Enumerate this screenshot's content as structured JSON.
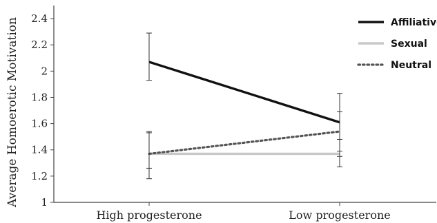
{
  "chart_data": {
    "type": "line",
    "ylabel": "Average Homoerotic Motivation",
    "xlabel": "",
    "categories": [
      "High progesterone",
      "Low progesterone"
    ],
    "ylim": [
      1,
      2.5
    ],
    "yticks": [
      "1",
      "1.2",
      "1.4",
      "1.6",
      "1.8",
      "2",
      "2.2",
      "2.4"
    ],
    "grid": false,
    "legend_position": "top-right",
    "series": [
      {
        "name": "Affiliative",
        "values": [
          2.07,
          1.61
        ],
        "error": [
          [
            1.93,
            2.29
          ],
          [
            1.39,
            1.83
          ]
        ],
        "color": "#111111",
        "style": "solid"
      },
      {
        "name": "Sexual",
        "values": [
          1.37,
          1.37
        ],
        "error": [
          [
            1.18,
            1.53
          ],
          [
            1.27,
            1.48
          ]
        ],
        "color": "#c8c8c8",
        "style": "solid"
      },
      {
        "name": "Neutral",
        "values": [
          1.37,
          1.54
        ],
        "error": [
          [
            1.26,
            1.54
          ],
          [
            1.35,
            1.69
          ]
        ],
        "color": "#555555",
        "style": "dotted"
      }
    ]
  }
}
